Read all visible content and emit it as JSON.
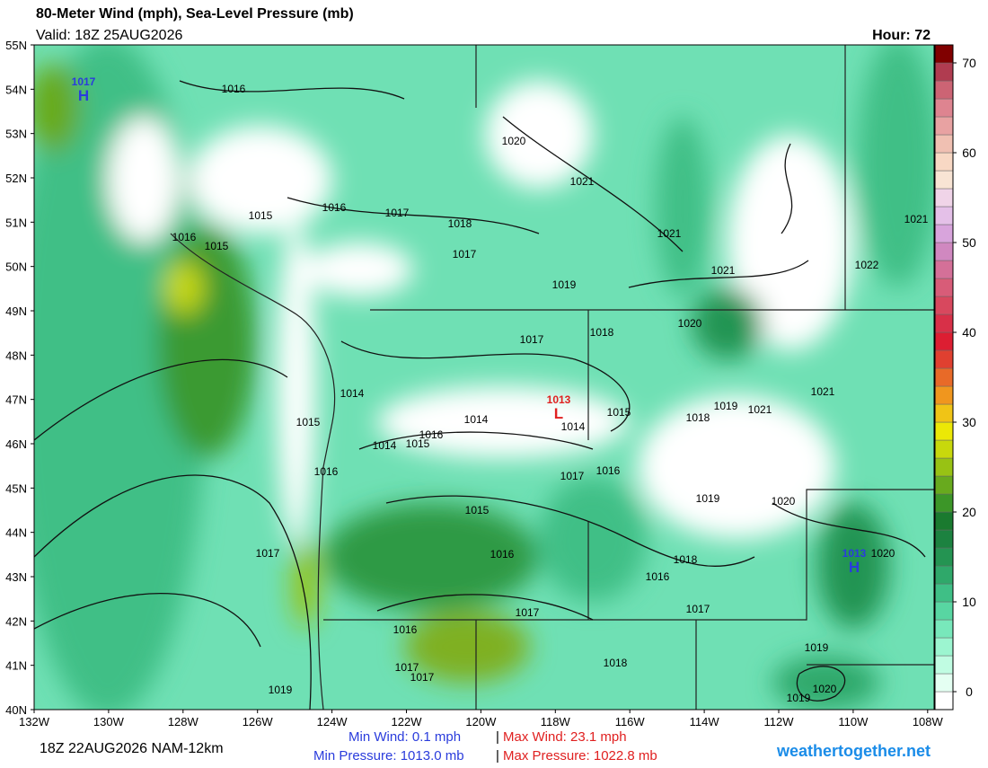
{
  "header": {
    "title": "80-Meter Wind (mph), Sea-Level Pressure (mb)",
    "valid": "Valid: 18Z 25AUG2026",
    "hour": "Hour: 72"
  },
  "map": {
    "lat_labels": [
      "55N",
      "54N",
      "53N",
      "52N",
      "51N",
      "50N",
      "49N",
      "48N",
      "47N",
      "46N",
      "45N",
      "44N",
      "43N",
      "42N",
      "41N",
      "40N"
    ],
    "lon_labels": [
      "132W",
      "130W",
      "128W",
      "126W",
      "124W",
      "122W",
      "120W",
      "118W",
      "116W",
      "114W",
      "112W",
      "110W",
      "108W"
    ],
    "isobar_labels": [
      "1016",
      "1020",
      "1021",
      "1015",
      "1016",
      "1017",
      "1018",
      "1021",
      "1021",
      "1016",
      "1015",
      "1017",
      "1022",
      "1021",
      "1019",
      "1020",
      "1017",
      "1018",
      "1014",
      "1021",
      "1019",
      "1021",
      "1018",
      "1015",
      "1015",
      "1014",
      "1014",
      "1016",
      "1014",
      "1015",
      "1016",
      "1017",
      "1016",
      "1019",
      "1020",
      "1015",
      "1017",
      "1016",
      "1018",
      "1016",
      "1020",
      "1017",
      "1017",
      "1016",
      "1018",
      "1019",
      "1017",
      "1017",
      "1019",
      "1020",
      "1019"
    ],
    "centers": [
      {
        "letter": "H",
        "value": "1017"
      },
      {
        "letter": "L",
        "value": "1013"
      },
      {
        "letter": "H",
        "value": "1013"
      }
    ]
  },
  "colorbar": {
    "ylim": [
      -2,
      72
    ],
    "ticks": [
      0,
      10,
      20,
      30,
      40,
      50,
      60,
      70
    ],
    "colors": [
      "#ffffff",
      "#e4fff2",
      "#c0fce2",
      "#9cf5d0",
      "#78e8bb",
      "#58d6a2",
      "#3fbf86",
      "#2fa86a",
      "#249452",
      "#1c8240",
      "#1a7a2f",
      "#3c9628",
      "#68aa1e",
      "#98c214",
      "#c8d80c",
      "#ece806",
      "#f0c416",
      "#f0961e",
      "#e86a28",
      "#e04030",
      "#dc1e32",
      "#d83048",
      "#d8485e",
      "#d85c78",
      "#d47098",
      "#d088c0",
      "#d8a4dc",
      "#e4c0e8",
      "#f0d4e8",
      "#f8e4d4",
      "#f8d8c4",
      "#f0c0b2",
      "#e8a2a2",
      "#de8490",
      "#cc6474",
      "#b03c50",
      "#800000"
    ]
  },
  "footer": {
    "run": "18Z 22AUG2026 NAM-12km",
    "min_wind": "Min Wind:   0.1 mph",
    "max_wind": "Max Wind: 23.1 mph",
    "min_pressure": "Min Pressure: 1013.0 mb",
    "max_pressure": "Max Pressure: 1022.8 mb",
    "separator": "|",
    "site": "weathertogether.net"
  }
}
